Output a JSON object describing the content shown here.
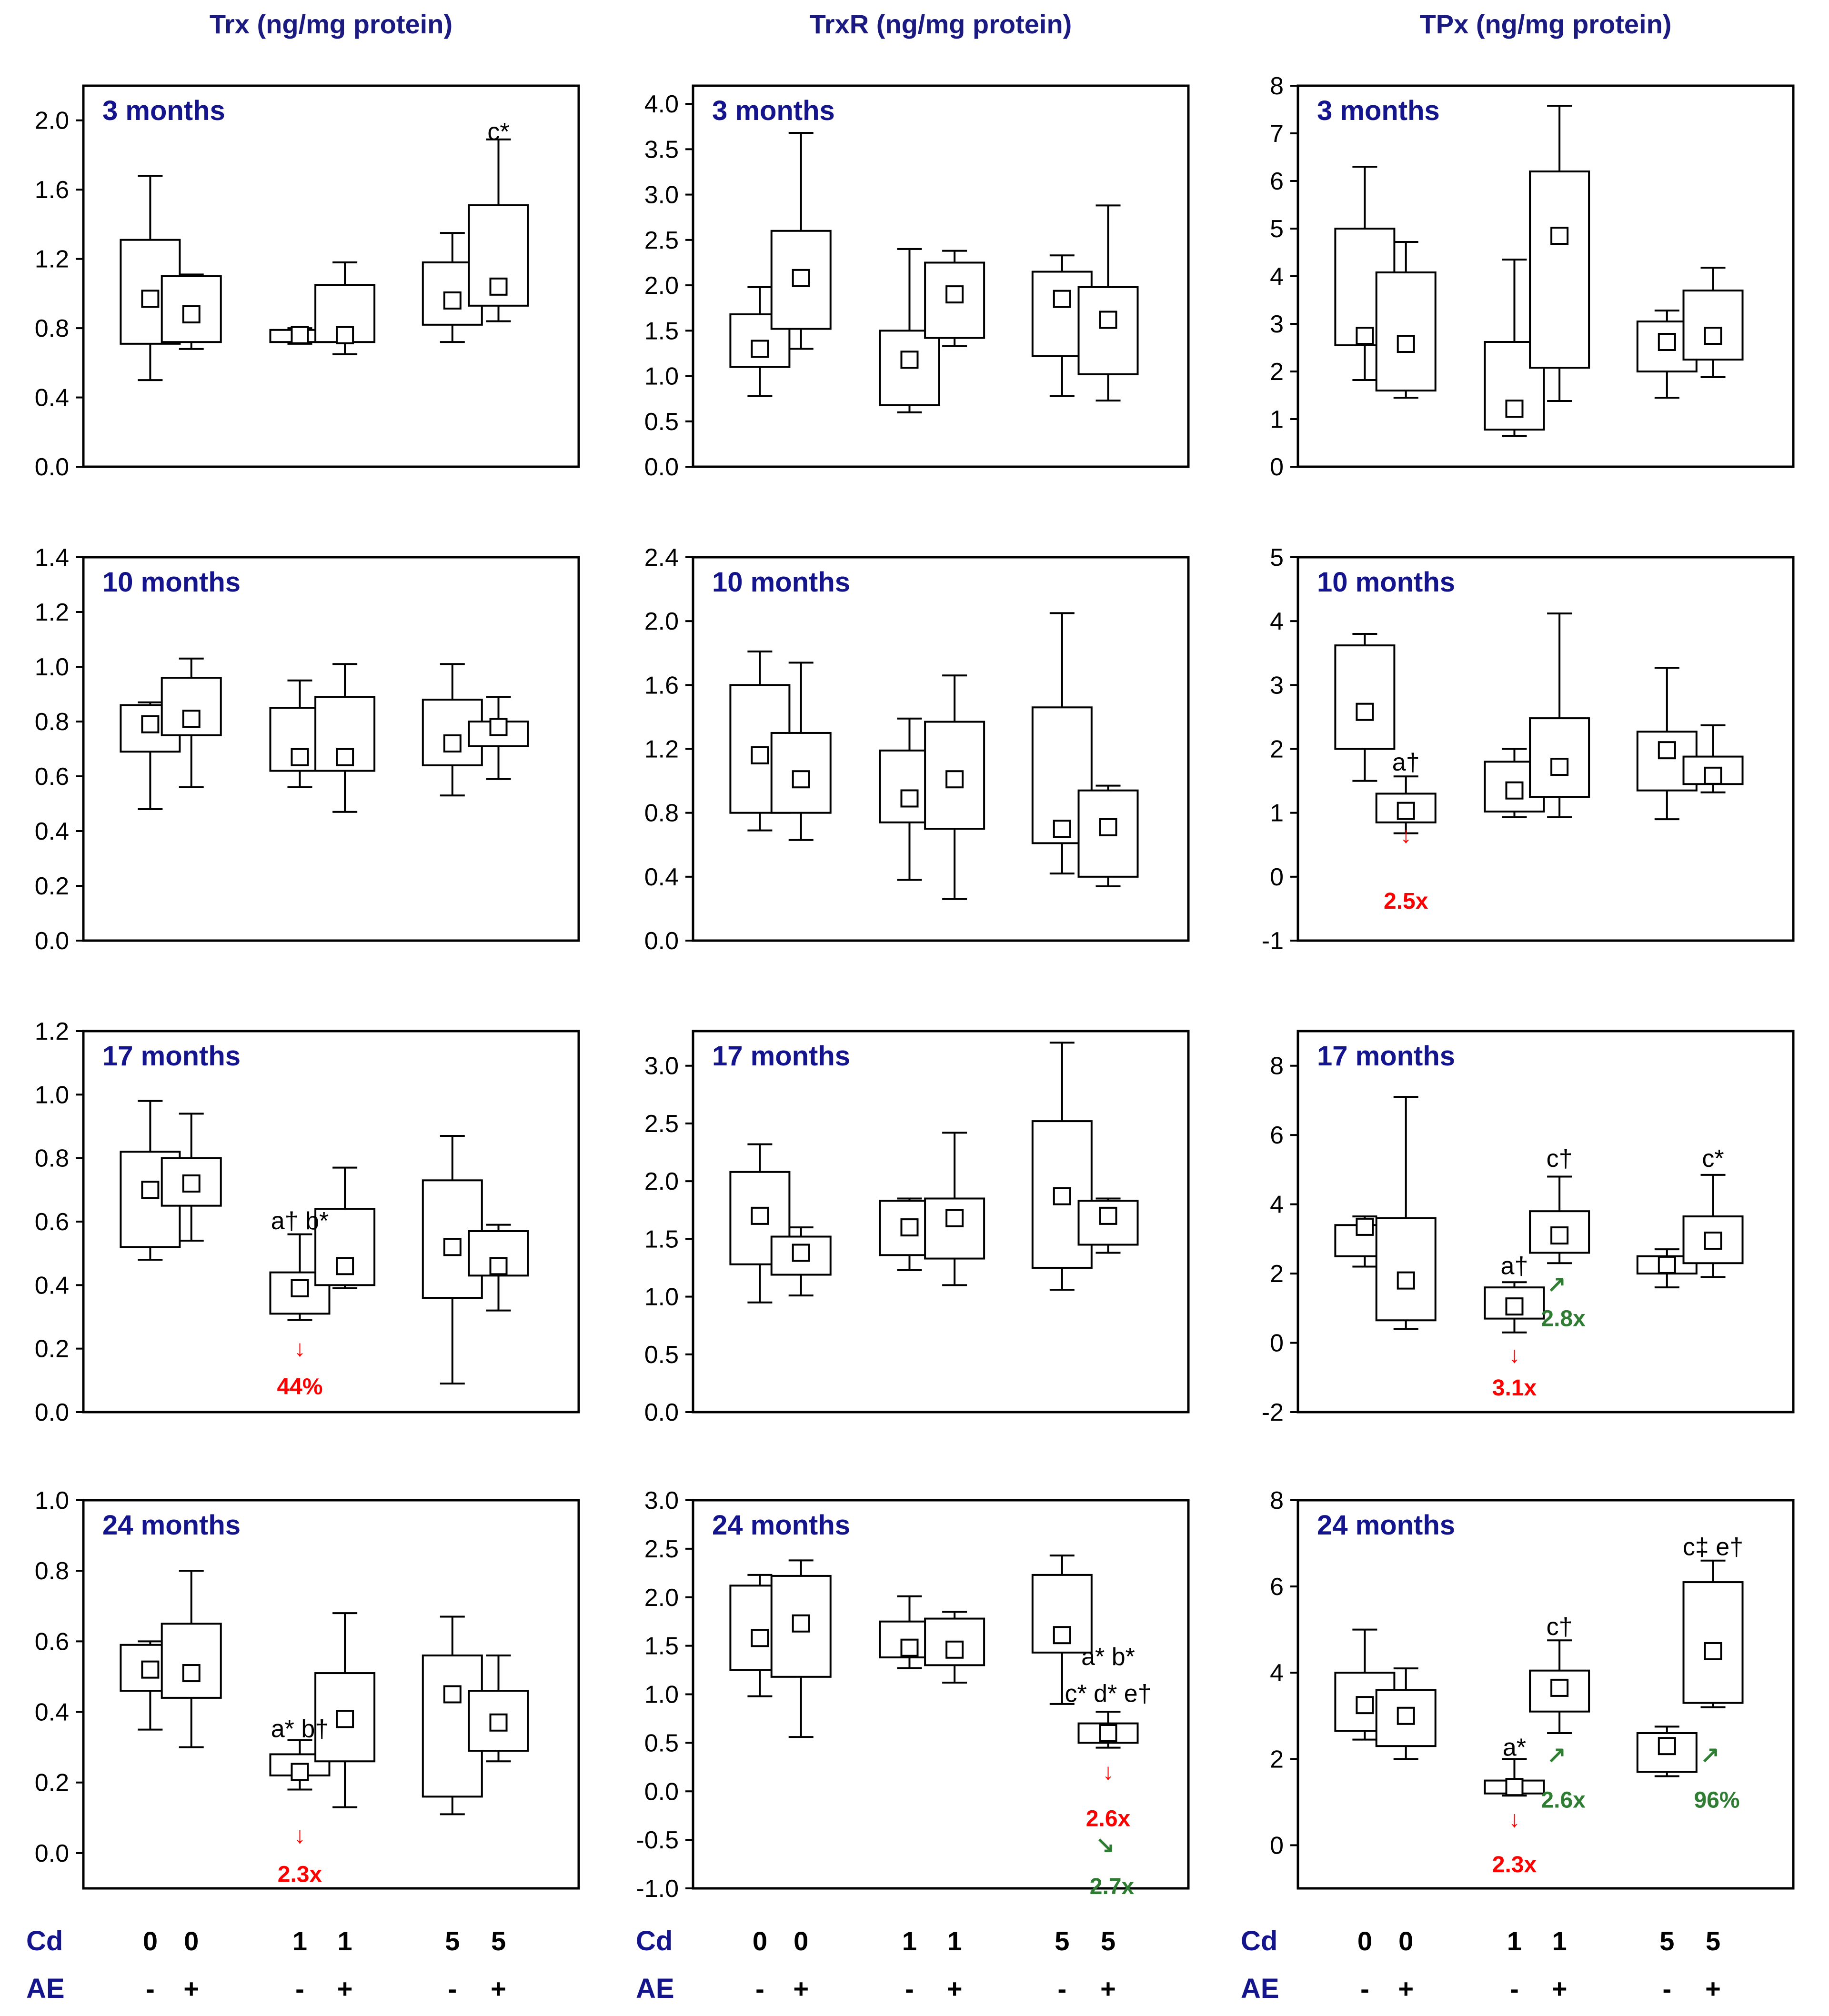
{
  "figure": {
    "columns": [
      {
        "title": "Trx (ng/mg protein)"
      },
      {
        "title": "TrxR (ng/mg protein)"
      },
      {
        "title": "TPx (ng/mg protein)"
      }
    ],
    "factors": [
      {
        "label": "Cd",
        "values": [
          "0",
          "0",
          "1",
          "1",
          "5",
          "5"
        ]
      },
      {
        "label": "AE",
        "values": [
          "-",
          "+",
          "-",
          "+",
          "-",
          "+"
        ]
      }
    ],
    "colors": {
      "down": "#ff0000",
      "up": "#2e7d32",
      "title": "#1a1a80"
    }
  },
  "chart_data": [
    {
      "type": "box",
      "column": 0,
      "period": "3 months",
      "ylim": [
        0,
        2.2
      ],
      "yticks": [
        "0.0",
        "0.4",
        "0.8",
        "1.2",
        "1.6",
        "2.0"
      ],
      "tickvals": [
        0,
        0.4,
        0.8,
        1.2,
        1.6,
        2.0
      ],
      "boxes": [
        [
          0.5,
          0.71,
          1.31,
          1.68,
          0.97
        ],
        [
          0.68,
          0.72,
          1.1,
          1.11,
          0.88
        ],
        [
          0.71,
          0.72,
          0.79,
          0.8,
          0.76
        ],
        [
          0.65,
          0.72,
          1.05,
          1.18,
          0.76
        ],
        [
          0.72,
          0.82,
          1.18,
          1.35,
          0.96
        ],
        [
          0.84,
          0.93,
          1.51,
          1.89,
          1.04
        ]
      ],
      "annotations": [
        {
          "group": 5,
          "y": 1.93,
          "text": "c*"
        }
      ]
    },
    {
      "type": "box",
      "column": 1,
      "period": "3 months",
      "ylim": [
        0,
        4.2
      ],
      "yticks": [
        "0.0",
        "0.5",
        "1.0",
        "1.5",
        "2.0",
        "2.5",
        "3.0",
        "3.5",
        "4.0"
      ],
      "tickvals": [
        0,
        0.5,
        1,
        1.5,
        2,
        2.5,
        3,
        3.5,
        4
      ],
      "boxes": [
        [
          0.78,
          1.1,
          1.68,
          1.98,
          1.3
        ],
        [
          1.3,
          1.52,
          2.6,
          3.68,
          2.08
        ],
        [
          0.6,
          0.68,
          1.5,
          2.4,
          1.18
        ],
        [
          1.33,
          1.42,
          2.25,
          2.38,
          1.9
        ],
        [
          0.78,
          1.22,
          2.15,
          2.33,
          1.85
        ],
        [
          0.73,
          1.02,
          1.98,
          2.88,
          1.62
        ]
      ],
      "annotations": []
    },
    {
      "type": "box",
      "column": 2,
      "period": "3 months",
      "ylim": [
        0,
        8
      ],
      "yticks": [
        "0",
        "1",
        "2",
        "3",
        "4",
        "5",
        "6",
        "7",
        "8"
      ],
      "tickvals": [
        0,
        1,
        2,
        3,
        4,
        5,
        6,
        7,
        8
      ],
      "boxes": [
        [
          1.82,
          2.55,
          5.0,
          6.3,
          2.75
        ],
        [
          1.45,
          1.6,
          4.08,
          4.72,
          2.58
        ],
        [
          0.65,
          0.78,
          2.62,
          4.35,
          1.22
        ],
        [
          1.38,
          2.08,
          6.2,
          7.58,
          4.85
        ],
        [
          1.45,
          2.0,
          3.05,
          3.28,
          2.62
        ],
        [
          1.88,
          2.25,
          3.7,
          4.18,
          2.75
        ]
      ],
      "annotations": []
    },
    {
      "type": "box",
      "column": 0,
      "period": "10 months",
      "ylim": [
        0,
        1.4
      ],
      "yticks": [
        "0.0",
        "0.2",
        "0.4",
        "0.6",
        "0.8",
        "1.0",
        "1.2",
        "1.4"
      ],
      "tickvals": [
        0,
        0.2,
        0.4,
        0.6,
        0.8,
        1.0,
        1.2,
        1.4
      ],
      "boxes": [
        [
          0.48,
          0.69,
          0.86,
          0.87,
          0.79
        ],
        [
          0.56,
          0.75,
          0.96,
          1.03,
          0.81
        ],
        [
          0.56,
          0.62,
          0.85,
          0.95,
          0.67
        ],
        [
          0.47,
          0.62,
          0.89,
          1.01,
          0.67
        ],
        [
          0.53,
          0.64,
          0.88,
          1.01,
          0.72
        ],
        [
          0.59,
          0.71,
          0.8,
          0.89,
          0.78
        ]
      ],
      "annotations": []
    },
    {
      "type": "box",
      "column": 1,
      "period": "10 months",
      "ylim": [
        0,
        2.4
      ],
      "yticks": [
        "0.0",
        "0.4",
        "0.8",
        "1.2",
        "1.6",
        "2.0",
        "2.4"
      ],
      "tickvals": [
        0,
        0.4,
        0.8,
        1.2,
        1.6,
        2.0,
        2.4
      ],
      "boxes": [
        [
          0.69,
          0.8,
          1.6,
          1.81,
          1.16
        ],
        [
          0.63,
          0.8,
          1.3,
          1.74,
          1.01
        ],
        [
          0.38,
          0.74,
          1.19,
          1.39,
          0.89
        ],
        [
          0.26,
          0.7,
          1.37,
          1.66,
          1.01
        ],
        [
          0.42,
          0.61,
          1.46,
          2.05,
          0.7
        ],
        [
          0.34,
          0.4,
          0.94,
          0.97,
          0.71
        ]
      ],
      "annotations": []
    },
    {
      "type": "box",
      "column": 2,
      "period": "10 months",
      "ylim": [
        -1,
        5
      ],
      "yticks": [
        "-1",
        "0",
        "1",
        "2",
        "3",
        "4",
        "5"
      ],
      "tickvals": [
        -1,
        0,
        1,
        2,
        3,
        4,
        5
      ],
      "boxes": [
        [
          1.5,
          2.0,
          3.62,
          3.8,
          2.58
        ],
        [
          0.68,
          0.85,
          1.3,
          1.57,
          1.03
        ],
        [
          0.93,
          1.02,
          1.8,
          2.0,
          1.35
        ],
        [
          0.93,
          1.25,
          2.48,
          4.12,
          1.72
        ],
        [
          0.9,
          1.35,
          2.27,
          3.27,
          1.98
        ],
        [
          1.32,
          1.45,
          1.88,
          2.37,
          1.58
        ]
      ],
      "annotations": [
        {
          "group": 1,
          "y": 1.78,
          "text": "a†"
        }
      ],
      "changes": [
        {
          "group": 1,
          "arrow_value": 0.65,
          "value_label_at": -0.38,
          "arrow": "↓",
          "text": "2.5x",
          "direction": "down"
        }
      ]
    },
    {
      "type": "box",
      "column": 0,
      "period": "17 months",
      "ylim": [
        0,
        1.2
      ],
      "yticks": [
        "0.0",
        "0.2",
        "0.4",
        "0.6",
        "0.8",
        "1.0",
        "1.2"
      ],
      "tickvals": [
        0,
        0.2,
        0.4,
        0.6,
        0.8,
        1.0,
        1.2
      ],
      "boxes": [
        [
          0.48,
          0.52,
          0.82,
          0.98,
          0.7
        ],
        [
          0.54,
          0.65,
          0.8,
          0.94,
          0.72
        ],
        [
          0.29,
          0.31,
          0.44,
          0.56,
          0.39
        ],
        [
          0.39,
          0.4,
          0.64,
          0.77,
          0.46
        ],
        [
          0.09,
          0.36,
          0.73,
          0.87,
          0.52
        ],
        [
          0.32,
          0.43,
          0.57,
          0.59,
          0.46
        ]
      ],
      "annotations": [
        {
          "group": 2,
          "y": 0.6,
          "text": "a† b*"
        }
      ],
      "changes": [
        {
          "group": 2,
          "arrow_value": 0.2,
          "value_label_at": 0.08,
          "arrow": "↓",
          "text": "44%",
          "direction": "down"
        }
      ]
    },
    {
      "type": "box",
      "column": 1,
      "period": "17 months",
      "ylim": [
        0,
        3.3
      ],
      "yticks": [
        "0.0",
        "0.5",
        "1.0",
        "1.5",
        "2.0",
        "2.5",
        "3.0"
      ],
      "tickvals": [
        0,
        0.5,
        1,
        1.5,
        2,
        2.5,
        3
      ],
      "boxes": [
        [
          0.95,
          1.28,
          2.08,
          2.32,
          1.7
        ],
        [
          1.01,
          1.19,
          1.52,
          1.6,
          1.38
        ],
        [
          1.23,
          1.36,
          1.83,
          1.85,
          1.6
        ],
        [
          1.1,
          1.33,
          1.85,
          2.42,
          1.68
        ],
        [
          1.06,
          1.25,
          2.52,
          3.2,
          1.87
        ],
        [
          1.38,
          1.45,
          1.83,
          1.85,
          1.7
        ]
      ],
      "annotations": []
    },
    {
      "type": "box",
      "column": 2,
      "period": "17 months",
      "ylim": [
        -2,
        9
      ],
      "yticks": [
        "-2",
        "0",
        "2",
        "4",
        "6",
        "8"
      ],
      "tickvals": [
        -2,
        0,
        2,
        4,
        6,
        8
      ],
      "boxes": [
        [
          2.2,
          2.5,
          3.4,
          3.65,
          3.35
        ],
        [
          0.4,
          0.65,
          3.6,
          7.1,
          1.8
        ],
        [
          0.3,
          0.7,
          1.6,
          1.75,
          1.05
        ],
        [
          2.3,
          2.6,
          3.8,
          4.8,
          3.1
        ],
        [
          1.6,
          2.0,
          2.5,
          2.7,
          2.25
        ],
        [
          1.9,
          2.3,
          3.65,
          4.85,
          2.95
        ]
      ],
      "annotations": [
        {
          "group": 2,
          "y": 2.2,
          "text": "a†"
        },
        {
          "group": 3,
          "y": 5.3,
          "text": "c†"
        },
        {
          "group": 5,
          "y": 5.3,
          "text": "c*"
        }
      ],
      "changes": [
        {
          "group": 2,
          "arrow_value": -0.35,
          "value_label_at": -1.3,
          "arrow": "↓",
          "text": "3.1x",
          "direction": "down"
        },
        {
          "group": 3,
          "arrow_value": 1.7,
          "value_label_at": 0.7,
          "arrow": "↗",
          "text": "2.8x",
          "direction": "up"
        }
      ]
    },
    {
      "type": "box",
      "column": 0,
      "period": "24 months",
      "ylim": [
        -0.1,
        1.0
      ],
      "yticks": [
        "0.0",
        "0.2",
        "0.4",
        "0.6",
        "0.8",
        "1.0"
      ],
      "tickvals": [
        0,
        0.2,
        0.4,
        0.6,
        0.8,
        1.0
      ],
      "boxes": [
        [
          0.35,
          0.46,
          0.59,
          0.6,
          0.52
        ],
        [
          0.3,
          0.44,
          0.65,
          0.8,
          0.51
        ],
        [
          0.18,
          0.22,
          0.28,
          0.32,
          0.23
        ],
        [
          0.13,
          0.26,
          0.51,
          0.68,
          0.38
        ],
        [
          0.11,
          0.16,
          0.56,
          0.67,
          0.45
        ],
        [
          0.26,
          0.29,
          0.46,
          0.56,
          0.37
        ]
      ],
      "annotations": [
        {
          "group": 2,
          "y": 0.35,
          "text": "a* b†"
        }
      ],
      "changes": [
        {
          "group": 2,
          "arrow_value": 0.05,
          "value_label_at": -0.06,
          "arrow": "↓",
          "text": "2.3x",
          "direction": "down"
        }
      ]
    },
    {
      "type": "box",
      "column": 1,
      "period": "24 months",
      "ylim": [
        -1.0,
        3.0
      ],
      "yticks": [
        "-1.0",
        "-0.5",
        "0.0",
        "0.5",
        "1.0",
        "1.5",
        "2.0",
        "2.5",
        "3.0"
      ],
      "tickvals": [
        -1,
        -0.5,
        0,
        0.5,
        1,
        1.5,
        2,
        2.5,
        3
      ],
      "boxes": [
        [
          0.98,
          1.25,
          2.12,
          2.23,
          1.58
        ],
        [
          0.56,
          1.18,
          2.22,
          2.38,
          1.73
        ],
        [
          1.27,
          1.38,
          1.75,
          2.01,
          1.48
        ],
        [
          1.12,
          1.3,
          1.78,
          1.85,
          1.46
        ],
        [
          0.9,
          1.43,
          2.23,
          2.43,
          1.61
        ],
        [
          0.45,
          0.5,
          0.7,
          0.82,
          0.6
        ]
      ],
      "annotations": [
        {
          "group": 5,
          "y": 1.38,
          "text": "a* b*"
        },
        {
          "group": 5,
          "y": 1.0,
          "text": "c* d* e†"
        }
      ],
      "changes": [
        {
          "group": 5,
          "arrow_value": 0.2,
          "value_label_at": -0.28,
          "arrow": "↓",
          "text": "2.6x",
          "direction": "down"
        },
        {
          "group": 5,
          "arrow_value": -0.55,
          "value_label_at": -0.98,
          "arrow": "↘",
          "text": "2.7x",
          "direction": "up"
        }
      ]
    },
    {
      "type": "box",
      "column": 2,
      "period": "24 months",
      "ylim": [
        -1,
        8
      ],
      "yticks": [
        "0",
        "2",
        "4",
        "6",
        "8"
      ],
      "tickvals": [
        0,
        2,
        4,
        6,
        8
      ],
      "boxes": [
        [
          2.45,
          2.65,
          4.0,
          5.0,
          3.25
        ],
        [
          2.0,
          2.3,
          3.6,
          4.1,
          3.0
        ],
        [
          1.15,
          1.2,
          1.5,
          2.0,
          1.35
        ],
        [
          2.6,
          3.1,
          4.05,
          4.75,
          3.65
        ],
        [
          1.6,
          1.7,
          2.6,
          2.75,
          2.3
        ],
        [
          3.2,
          3.3,
          6.1,
          6.6,
          4.5
        ]
      ],
      "annotations": [
        {
          "group": 2,
          "y": 2.25,
          "text": "a*"
        },
        {
          "group": 3,
          "y": 5.05,
          "text": "c†"
        },
        {
          "group": 5,
          "y": 6.9,
          "text": "c‡ e†"
        }
      ],
      "changes": [
        {
          "group": 2,
          "arrow_value": 0.6,
          "value_label_at": -0.45,
          "arrow": "↓",
          "text": "2.3x",
          "direction": "down"
        },
        {
          "group": 3,
          "arrow_value": 2.1,
          "value_label_at": 1.05,
          "arrow": "↗",
          "text": "2.6x",
          "direction": "up"
        },
        {
          "group": 5,
          "arrow_value": 2.1,
          "value_label_at": 1.05,
          "arrow": "↗",
          "text": "96%",
          "direction": "up"
        }
      ]
    }
  ]
}
